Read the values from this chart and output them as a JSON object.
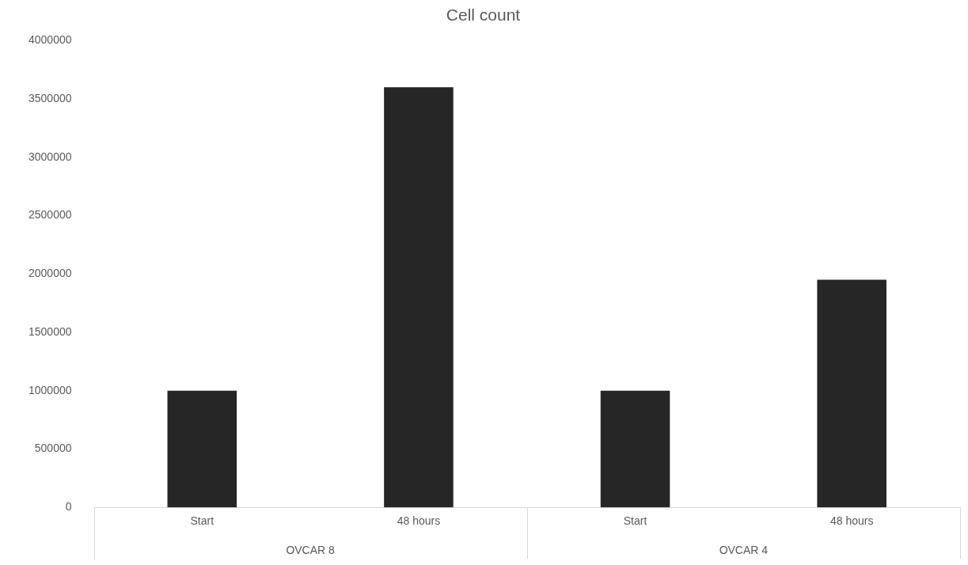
{
  "chart_data": {
    "type": "bar",
    "title": "Cell count",
    "categories": [
      "Start",
      "48 hours",
      "Start",
      "48 hours"
    ],
    "values": [
      1000000,
      3600000,
      1000000,
      1950000
    ],
    "color": "#262626",
    "ylim": [
      0,
      4000000
    ],
    "yticks": [
      0,
      500000,
      1000000,
      1500000,
      2000000,
      2500000,
      3000000,
      3500000,
      4000000
    ],
    "grid": false,
    "legend": false,
    "annotations": [
      "OVCAR 8",
      "OVCAR 4"
    ]
  }
}
